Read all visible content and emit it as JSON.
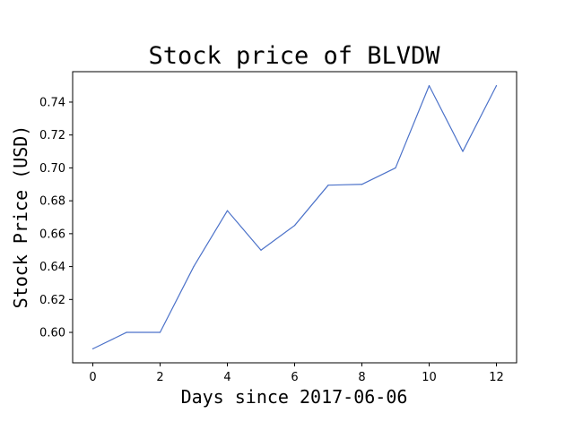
{
  "chart_data": {
    "type": "line",
    "title": "Stock price of BLVDW",
    "xlabel": "Days since 2017-06-06",
    "ylabel": "Stock Price (USD)",
    "x": [
      0,
      1,
      2,
      3,
      4,
      5,
      6,
      7,
      8,
      9,
      10,
      11,
      12
    ],
    "series": [
      {
        "values": [
          0.59,
          0.6,
          0.6,
          0.64,
          0.674,
          0.65,
          0.665,
          0.6895,
          0.69,
          0.7,
          0.75,
          0.71,
          0.75
        ],
        "color": "#4c72c9"
      }
    ],
    "xlim": [
      -0.6,
      12.6
    ],
    "ylim": [
      0.5815,
      0.7585
    ],
    "xticks": [
      0,
      2,
      4,
      6,
      8,
      10,
      12
    ],
    "yticks": [
      0.6,
      0.62,
      0.64,
      0.66,
      0.68,
      0.7,
      0.72,
      0.74
    ],
    "grid": false,
    "legend": "none"
  }
}
